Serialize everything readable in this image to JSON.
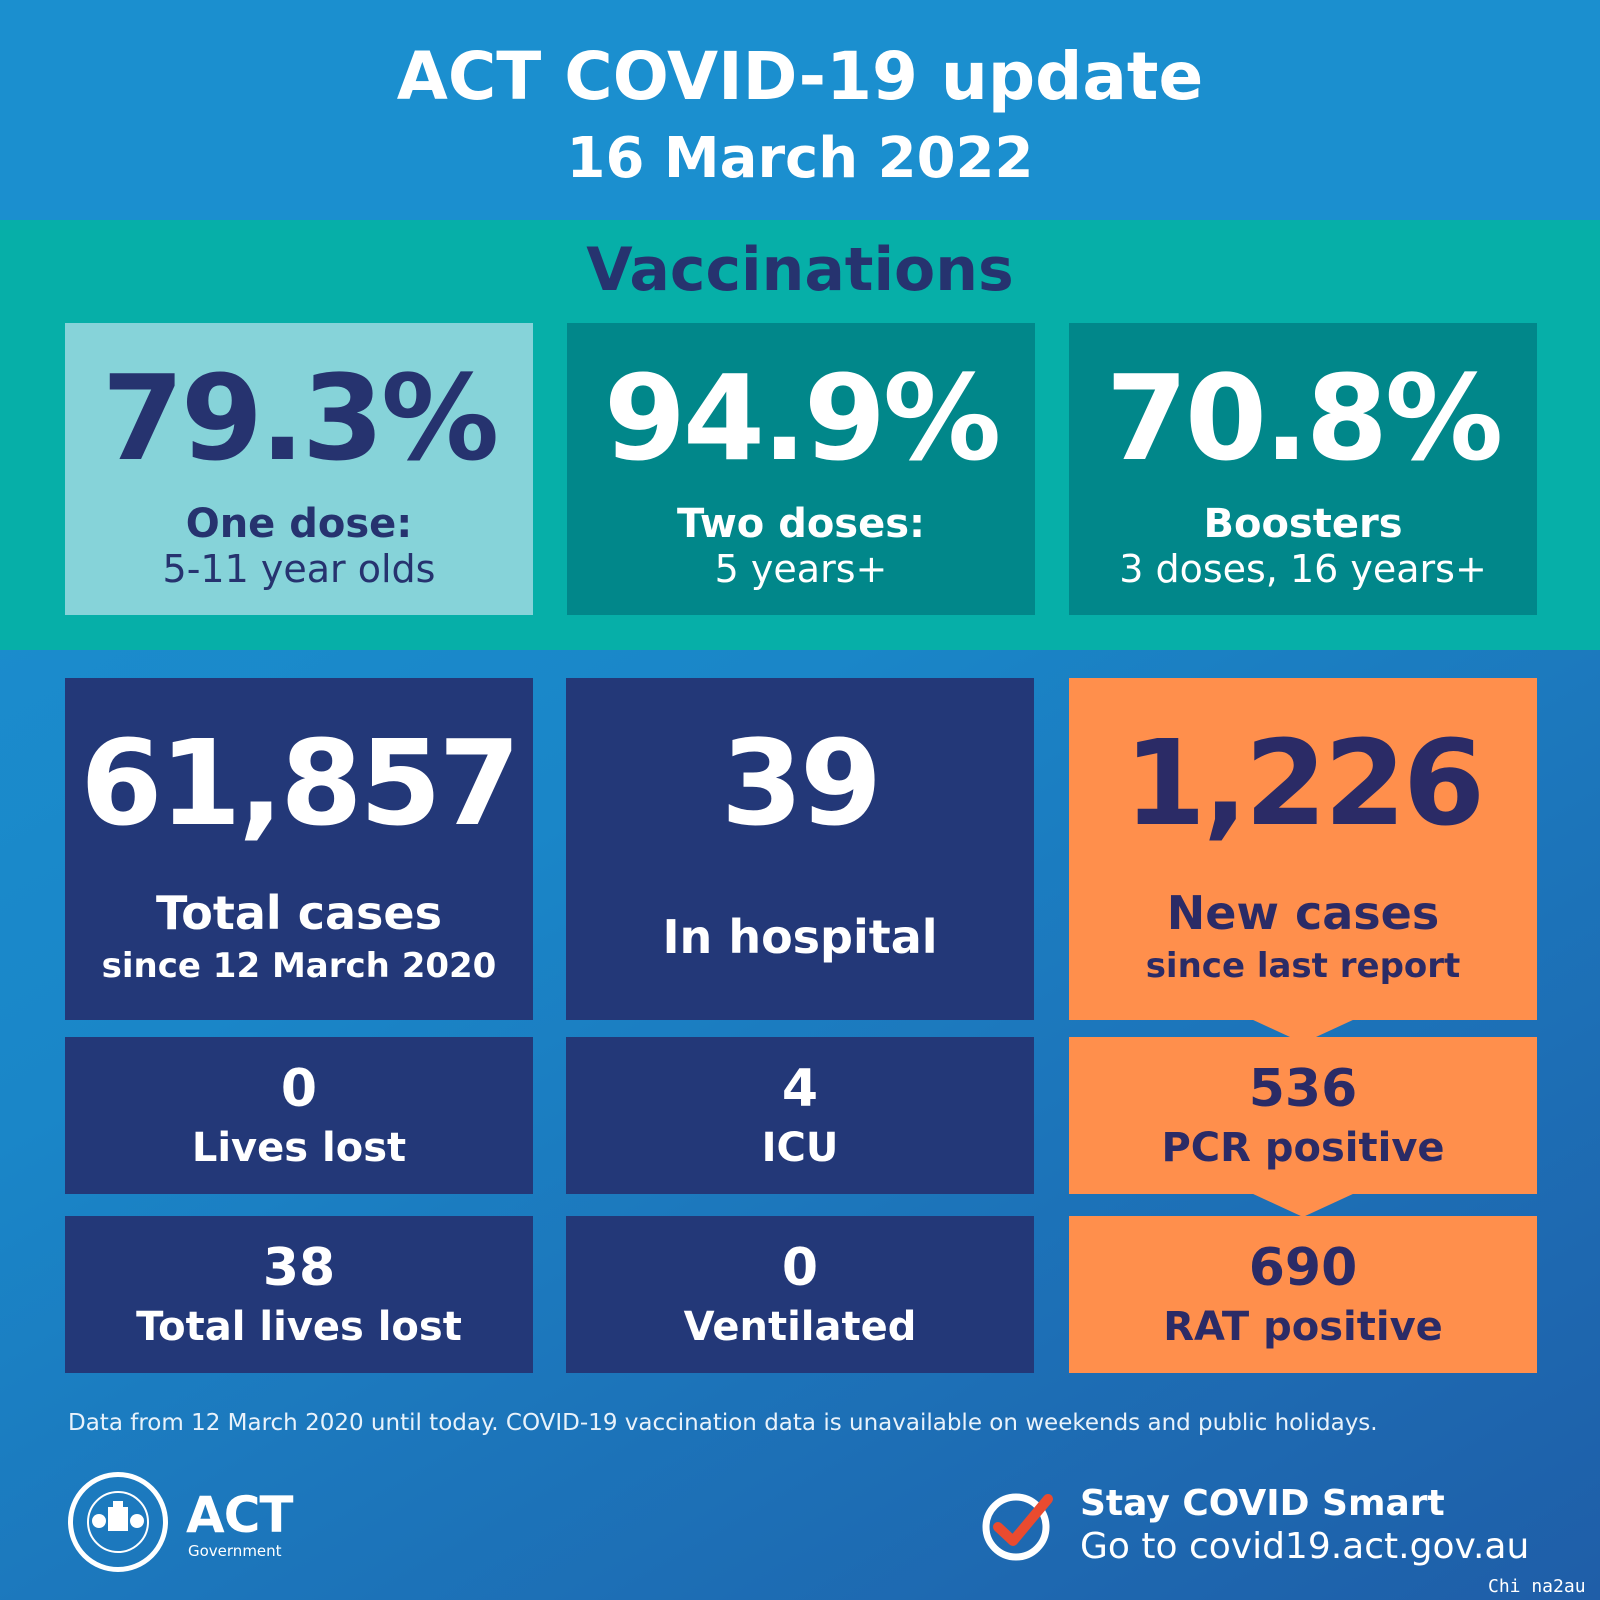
{
  "header": {
    "title": "ACT COVID-19 update",
    "date": "16 March 2022"
  },
  "vaccinations": {
    "heading": "Vaccinations",
    "cards": [
      {
        "value": "79.3%",
        "line1": "One dose:",
        "line2": "5-11 year olds"
      },
      {
        "value": "94.9%",
        "line1": "Two doses:",
        "line2": "5 years+"
      },
      {
        "value": "70.8%",
        "line1": "Boosters",
        "line2": "3 doses, 16 years+"
      }
    ]
  },
  "stats": {
    "total_cases": {
      "value": "61,857",
      "line1": "Total cases",
      "line2": "since 12 March 2020"
    },
    "in_hospital": {
      "value": "39",
      "label": "In hospital"
    },
    "new_cases": {
      "value": "1,226",
      "line1": "New cases",
      "line2": "since last report"
    },
    "lives_lost": {
      "value": "0",
      "label": "Lives lost"
    },
    "icu": {
      "value": "4",
      "label": "ICU"
    },
    "pcr_positive": {
      "value": "536",
      "label": "PCR positive"
    },
    "total_lives_lost": {
      "value": "38",
      "label": "Total lives lost"
    },
    "ventilated": {
      "value": "0",
      "label": "Ventilated"
    },
    "rat_positive": {
      "value": "690",
      "label": "RAT positive"
    }
  },
  "footnote": "Data from 12 March 2020 until today.  COVID-19 vaccination data is unavailable on weekends and public holidays.",
  "logo": {
    "act": "ACT",
    "government": "Government",
    "icon": "act-coat-of-arms-icon"
  },
  "stay_smart": {
    "line1": "Stay COVID Smart",
    "line2": "Go to covid19.act.gov.au",
    "icon": "check-circle-icon"
  },
  "watermark": "Chi na2au",
  "colors": {
    "header_blue": "#1b8fcf",
    "teal_band": "#06afa8",
    "light_teal": "#86d3d9",
    "dark_teal": "#01878a",
    "navy": "#233878",
    "orange": "#ff8f4c",
    "dark_text": "#26336f",
    "check_red": "#ea4b2f"
  }
}
